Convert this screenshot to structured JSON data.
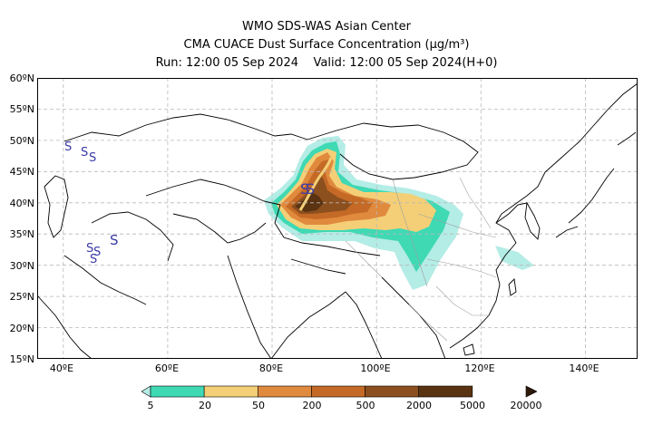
{
  "title": {
    "line1": "WMO SDS-WAS Asian Center",
    "line2": "CMA CUACE Dust Surface Concentration (μg/m³)",
    "line3": "Run: 12:00 05 Sep 2024    Valid: 12:00 05 Sep 2024(H+0)"
  },
  "lat_labels": [
    "60ºN",
    "55ºN",
    "50ºN",
    "45ºN",
    "40ºN",
    "35ºN",
    "30ºN",
    "25ºN",
    "20ºN",
    "15ºN"
  ],
  "lon_labels": [
    "40ºE",
    "60ºE",
    "80ºE",
    "100ºE",
    "120ºE",
    "140ºE"
  ],
  "map_extent": {
    "lon": [
      35,
      150
    ],
    "lat": [
      15,
      60
    ]
  },
  "colorbar": {
    "labels": [
      "5",
      "20",
      "50",
      "200",
      "500",
      "2000",
      "5000",
      "20000"
    ],
    "colors": [
      "#b4ece6",
      "#3fd9b4",
      "#f4cf77",
      "#e08a3e",
      "#c46a26",
      "#8c4f1e",
      "#5a3312",
      "#2e1a08"
    ]
  },
  "station_marker": "S",
  "marker_color": "#3a3aa8"
}
